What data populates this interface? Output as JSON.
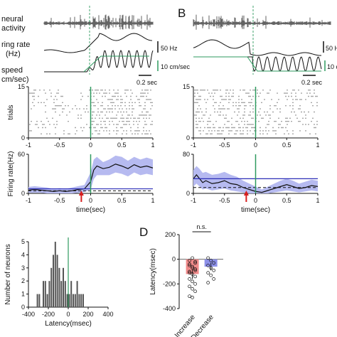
{
  "panel_labels": [
    "B",
    "D"
  ],
  "trace_labels": {
    "neural": "neural",
    "activity": "activity",
    "firing1": "ring rate",
    "firing2": "(Hz)",
    "speed1": "speed",
    "speed2": "cm/sec)"
  },
  "scalebars": {
    "hz_left": "50 Hz",
    "hz_right": "50 H",
    "speed_left": "10 cm/sec",
    "speed_right": "10 c",
    "time_left": "0.2 sec",
    "time_right": "0.2 sec"
  },
  "colors": {
    "green": "#2e9a5f",
    "blue": "#2d2fb8",
    "band": "#b6baf0",
    "red": "#d81e1e",
    "bar_red": "#f08a8a",
    "bar_blue": "#8c90e8",
    "hist": "#555555"
  },
  "chart_data": [
    {
      "type": "scatter",
      "panel": "raster-left",
      "ylabel": "trials",
      "xlim": [
        -1,
        1
      ],
      "ylim": [
        0,
        15
      ],
      "yticks": [
        "0",
        "15"
      ],
      "xticks": [
        "-1",
        "-0.5",
        "0",
        "0.5",
        "1"
      ],
      "trials": 15,
      "pre_rate": 14,
      "post_rate": 42
    },
    {
      "type": "line",
      "panel": "rate-left",
      "ylabel": "Firing rate(Hz)",
      "xlabel": "time(sec)",
      "xlim": [
        -1,
        1
      ],
      "ylim": [
        0,
        60
      ],
      "yticks": [
        "0",
        "60"
      ],
      "xticks": [
        "-1",
        "-0.5",
        "0",
        "0.5",
        "1"
      ],
      "x": [
        -1,
        -0.9,
        -0.8,
        -0.7,
        -0.6,
        -0.5,
        -0.4,
        -0.3,
        -0.2,
        -0.1,
        0,
        0.05,
        0.1,
        0.15,
        0.2,
        0.3,
        0.4,
        0.5,
        0.6,
        0.7,
        0.8,
        0.9,
        1
      ],
      "y": [
        5,
        6,
        5,
        4,
        3,
        4,
        3,
        4,
        6,
        7,
        18,
        36,
        42,
        40,
        38,
        40,
        45,
        42,
        38,
        44,
        40,
        42,
        39
      ],
      "y_upper": [
        10,
        11,
        10,
        9,
        7,
        8,
        7,
        9,
        11,
        13,
        32,
        52,
        56,
        52,
        48,
        52,
        58,
        56,
        50,
        56,
        52,
        55,
        52
      ],
      "y_lower": [
        1,
        1,
        1,
        0,
        0,
        0,
        0,
        0,
        1,
        2,
        6,
        22,
        28,
        28,
        28,
        28,
        32,
        30,
        26,
        32,
        28,
        30,
        28
      ],
      "baseline_mean": 4,
      "threshold": 7,
      "arrow_x": -0.15
    },
    {
      "type": "scatter",
      "panel": "raster-right",
      "xlim": [
        -1,
        1
      ],
      "ylim": [
        0,
        15
      ],
      "yticks": [
        "0",
        "15"
      ],
      "xticks": [
        "-1",
        "-0.5",
        "0",
        "0.5",
        "1"
      ],
      "trials": 15,
      "pre_rate": 40,
      "post_rate": 22
    },
    {
      "type": "line",
      "panel": "rate-right",
      "xlabel": "time(sec)",
      "xlim": [
        -1,
        1
      ],
      "ylim": [
        0,
        80
      ],
      "yticks": [
        "0",
        "80"
      ],
      "xticks": [
        "-1",
        "-0.5",
        "0",
        "0.5",
        "1"
      ],
      "x": [
        -1,
        -0.95,
        -0.9,
        -0.85,
        -0.8,
        -0.7,
        -0.6,
        -0.5,
        -0.4,
        -0.3,
        -0.2,
        -0.1,
        0,
        0.1,
        0.2,
        0.3,
        0.4,
        0.5,
        0.6,
        0.7,
        0.8,
        0.9,
        1
      ],
      "y": [
        30,
        38,
        30,
        22,
        26,
        20,
        22,
        26,
        20,
        18,
        12,
        8,
        4,
        2,
        6,
        10,
        14,
        18,
        14,
        10,
        12,
        16,
        14
      ],
      "y_upper": [
        48,
        56,
        50,
        42,
        44,
        38,
        40,
        44,
        38,
        34,
        26,
        20,
        14,
        8,
        14,
        20,
        26,
        30,
        26,
        20,
        24,
        28,
        26
      ],
      "y_lower": [
        14,
        20,
        14,
        8,
        10,
        6,
        8,
        10,
        6,
        4,
        2,
        0,
        0,
        0,
        0,
        2,
        4,
        6,
        4,
        2,
        4,
        6,
        4
      ],
      "baseline_mean": 12,
      "threshold": 30,
      "arrow_x": -0.15
    },
    {
      "type": "bar",
      "panel": "latency-histogram",
      "xlabel": "Latency(msec)",
      "ylabel": "Number of neurons",
      "xlim": [
        -400,
        400
      ],
      "ylim": [
        0,
        5
      ],
      "xticks": [
        "-400",
        "-200",
        "0",
        "200",
        "400"
      ],
      "yticks": [
        "0",
        "1",
        "2",
        "3",
        "4",
        "5"
      ],
      "bin_width": 20,
      "bin_starts": [
        -320,
        -300,
        -280,
        -260,
        -240,
        -220,
        -200,
        -180,
        -160,
        -140,
        -120,
        -100,
        -80,
        -60,
        -40,
        -20,
        0,
        20,
        40,
        60,
        80,
        100,
        120,
        140
      ],
      "values": [
        1,
        1,
        0,
        2,
        2,
        1,
        2,
        3,
        4,
        5,
        4,
        3,
        2,
        3,
        2,
        1,
        1,
        2,
        1,
        1,
        2,
        1,
        1,
        1
      ]
    },
    {
      "type": "bar",
      "panel": "latency-summary",
      "ylabel": "Latency(msec)",
      "categories": [
        "Increase",
        "Decrease"
      ],
      "values": [
        -120,
        -60
      ],
      "errors": [
        40,
        30
      ],
      "ylim": [
        -400,
        200
      ],
      "yticks": [
        "-400",
        "-200",
        "0",
        "200"
      ],
      "significance": "n.s.",
      "points": [
        [
          -10,
          10,
          -30,
          -50,
          -60,
          -80,
          -100,
          -120,
          -140,
          -160,
          -180,
          -200,
          -220,
          -240,
          -260,
          -300,
          -310,
          -20,
          -40,
          -70,
          -90,
          -110
        ],
        [
          10,
          -10,
          -30,
          -50,
          -70,
          -90,
          -110,
          -130,
          -160,
          -190
        ]
      ]
    }
  ]
}
